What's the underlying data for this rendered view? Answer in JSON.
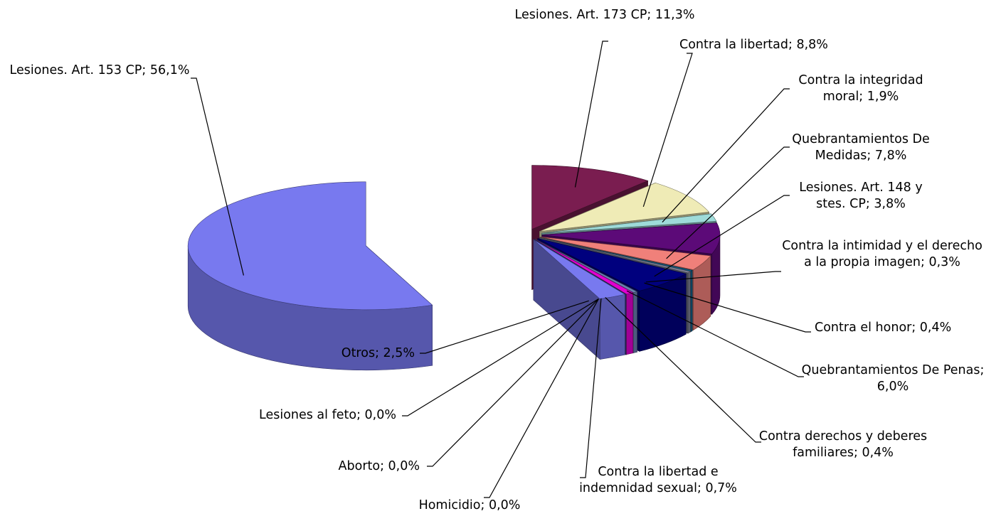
{
  "chart_data": {
    "type": "pie3d",
    "labels": [
      "Lesiones. Art. 173 CP; 11,3%",
      "Contra la libertad; 8,8%",
      "Contra la integridad moral; 1,9%",
      "Quebrantamientos De Medidas; 7,8%",
      "Lesiones. Art. 148 y stes. CP; 3,8%",
      "Contra la intimidad y el derecho a la propia imagen; 0,3%",
      "Contra el honor; 0,4%",
      "Quebrantamientos De Penas; 6,0%",
      "Contra derechos y deberes familiares; 0,4%",
      "Contra la libertad e indemnidad sexual; 0,7%",
      "Homicidio; 0,0%",
      "Aborto; 0,0%",
      "Lesiones al feto; 0,0%",
      "Otros; 2,5%",
      "Lesiones. Art. 153 CP; 56,1%"
    ],
    "values": [
      11.3,
      8.8,
      1.9,
      7.8,
      3.8,
      0.3,
      0.4,
      6.0,
      0.4,
      0.7,
      0.0,
      0.0,
      0.0,
      2.5,
      56.1
    ],
    "colors": [
      "#7a1d50",
      "#efebb6",
      "#9edbd9",
      "#5c0a78",
      "#f0807a",
      "#0f5f88",
      "#7c8096",
      "#00007e",
      "#6a7fb0",
      "#e000d0",
      "#eeee00",
      "#2c6a6a",
      "#444499",
      "#7879ef",
      "#7879ef"
    ]
  }
}
